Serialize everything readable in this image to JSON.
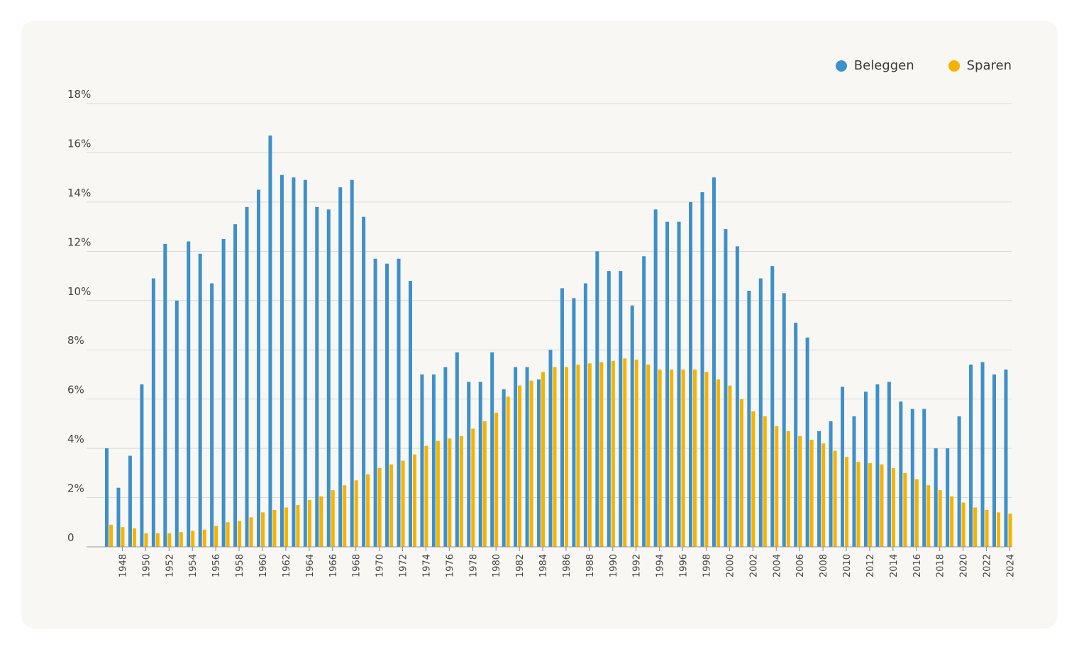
{
  "chart_data": {
    "type": "bar",
    "title": "",
    "xlabel": "",
    "ylabel": "",
    "ylim": [
      0,
      18
    ],
    "yticks": [
      "0",
      "2%",
      "4%",
      "6%",
      "8%",
      "10%",
      "12%",
      "14%",
      "16%",
      "18%"
    ],
    "ytick_values": [
      0,
      2,
      4,
      6,
      8,
      10,
      12,
      14,
      16,
      18
    ],
    "grid": true,
    "legend_position": "top-right",
    "categories": [
      1947,
      1948,
      1949,
      1950,
      1951,
      1952,
      1953,
      1954,
      1955,
      1956,
      1957,
      1958,
      1959,
      1960,
      1961,
      1962,
      1963,
      1964,
      1965,
      1966,
      1967,
      1968,
      1969,
      1970,
      1971,
      1972,
      1973,
      1974,
      1975,
      1976,
      1977,
      1978,
      1979,
      1980,
      1981,
      1982,
      1983,
      1984,
      1985,
      1986,
      1987,
      1988,
      1989,
      1990,
      1991,
      1992,
      1993,
      1994,
      1995,
      1996,
      1997,
      1998,
      1999,
      2000,
      2001,
      2002,
      2003,
      2004,
      2005,
      2006,
      2007,
      2008,
      2009,
      2010,
      2011,
      2012,
      2013,
      2014,
      2015,
      2016,
      2017,
      2018,
      2019,
      2020,
      2021,
      2022,
      2023,
      2024
    ],
    "series": [
      {
        "name": "Beleggen",
        "color": "#3d90c9",
        "values": [
          4.0,
          2.4,
          3.7,
          6.6,
          10.9,
          12.3,
          10.0,
          12.4,
          11.9,
          10.7,
          12.5,
          13.1,
          13.8,
          14.5,
          16.7,
          15.1,
          15.0,
          14.9,
          13.8,
          13.7,
          14.6,
          14.9,
          13.4,
          11.7,
          11.5,
          11.7,
          10.8,
          7.0,
          7.0,
          7.3,
          7.9,
          6.7,
          6.7,
          7.9,
          6.4,
          7.3,
          7.3,
          6.8,
          8.0,
          10.5,
          10.1,
          10.7,
          12.0,
          11.2,
          11.2,
          9.8,
          11.8,
          13.7,
          13.2,
          13.2,
          14.0,
          14.4,
          15.0,
          12.9,
          12.2,
          10.4,
          10.9,
          11.4,
          10.3,
          9.1,
          8.5,
          4.7,
          5.1,
          6.5,
          5.3,
          6.3,
          6.6,
          6.7,
          5.9,
          5.6,
          5.6,
          4.0,
          4.0,
          5.3,
          7.4,
          7.5,
          7.0,
          7.2
        ]
      },
      {
        "name": "Sparen",
        "color": "#f5b300",
        "values": [
          0.9,
          0.8,
          0.75,
          0.55,
          0.55,
          0.55,
          0.6,
          0.65,
          0.7,
          0.85,
          1.0,
          1.05,
          1.2,
          1.4,
          1.5,
          1.6,
          1.7,
          1.9,
          2.05,
          2.3,
          2.5,
          2.7,
          2.95,
          3.2,
          3.35,
          3.5,
          3.75,
          4.1,
          4.3,
          4.4,
          4.5,
          4.8,
          5.1,
          5.45,
          6.1,
          6.55,
          6.75,
          7.1,
          7.3,
          7.3,
          7.4,
          7.45,
          7.5,
          7.55,
          7.65,
          7.6,
          7.4,
          7.2,
          7.2,
          7.2,
          7.2,
          7.1,
          6.8,
          6.55,
          6.0,
          5.5,
          5.3,
          4.9,
          4.7,
          4.5,
          4.35,
          4.2,
          3.9,
          3.65,
          3.45,
          3.4,
          3.35,
          3.2,
          3.0,
          2.75,
          2.5,
          2.3,
          2.05,
          1.8,
          1.6,
          1.5,
          1.4,
          1.35
        ]
      }
    ],
    "xtick_labels": [
      "1948",
      "1950",
      "1952",
      "1954",
      "1956",
      "1958",
      "1960",
      "1962",
      "1964",
      "1966",
      "1968",
      "1970",
      "1972",
      "1974",
      "1976",
      "1978",
      "1980",
      "1982",
      "1984",
      "1986",
      "1988",
      "1990",
      "1992",
      "1994",
      "1996",
      "1998",
      "2000",
      "2002",
      "2004",
      "2006",
      "2008",
      "2010",
      "2012",
      "2014",
      "2016",
      "2018",
      "2020",
      "2022",
      "2024"
    ]
  },
  "legend": {
    "beleggen": "Beleggen",
    "sparen": "Sparen"
  }
}
